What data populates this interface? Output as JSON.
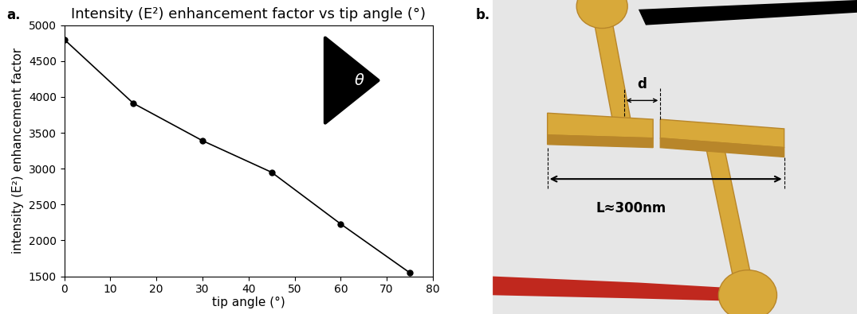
{
  "chart_data": {
    "type": "line",
    "title": "Intensity (E²) enhancement factor vs tip angle (°)",
    "x_label": "tip angle (°)",
    "y_label": "intensity (E²) enhancement factor",
    "x": [
      0,
      15,
      30,
      45,
      60,
      75
    ],
    "values": [
      4800,
      3910,
      3390,
      2950,
      2230,
      1550
    ],
    "color": "#000000",
    "marker": "o",
    "line_style": "solid",
    "xlim": [
      0,
      80
    ],
    "xticks": [
      0,
      10,
      20,
      30,
      40,
      50,
      60,
      70,
      80
    ],
    "ylim": [
      1500,
      5000
    ],
    "yticks": [
      1500,
      2000,
      2500,
      3000,
      3500,
      4000,
      4500,
      5000
    ],
    "grid": false
  },
  "inset_label": "θ",
  "panel_labels": [
    "a.",
    "b."
  ],
  "diagram": {
    "gap_label": "d",
    "length_label": "L≈300nm"
  }
}
